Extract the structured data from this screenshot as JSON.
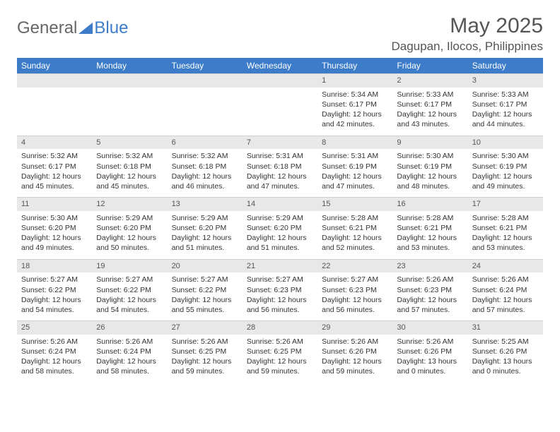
{
  "logo": {
    "text1": "General",
    "text2": "Blue"
  },
  "title": "May 2025",
  "location": "Dagupan, Ilocos, Philippines",
  "header_bg": "#3d7cc9",
  "daynum_bg": "#e8e8e8",
  "text_color": "#333333",
  "weekdays": [
    "Sunday",
    "Monday",
    "Tuesday",
    "Wednesday",
    "Thursday",
    "Friday",
    "Saturday"
  ],
  "weeks": [
    [
      null,
      null,
      null,
      null,
      {
        "n": "1",
        "sr": "5:34 AM",
        "ss": "6:17 PM",
        "dl": "12 hours and 42 minutes."
      },
      {
        "n": "2",
        "sr": "5:33 AM",
        "ss": "6:17 PM",
        "dl": "12 hours and 43 minutes."
      },
      {
        "n": "3",
        "sr": "5:33 AM",
        "ss": "6:17 PM",
        "dl": "12 hours and 44 minutes."
      }
    ],
    [
      {
        "n": "4",
        "sr": "5:32 AM",
        "ss": "6:17 PM",
        "dl": "12 hours and 45 minutes."
      },
      {
        "n": "5",
        "sr": "5:32 AM",
        "ss": "6:18 PM",
        "dl": "12 hours and 45 minutes."
      },
      {
        "n": "6",
        "sr": "5:32 AM",
        "ss": "6:18 PM",
        "dl": "12 hours and 46 minutes."
      },
      {
        "n": "7",
        "sr": "5:31 AM",
        "ss": "6:18 PM",
        "dl": "12 hours and 47 minutes."
      },
      {
        "n": "8",
        "sr": "5:31 AM",
        "ss": "6:19 PM",
        "dl": "12 hours and 47 minutes."
      },
      {
        "n": "9",
        "sr": "5:30 AM",
        "ss": "6:19 PM",
        "dl": "12 hours and 48 minutes."
      },
      {
        "n": "10",
        "sr": "5:30 AM",
        "ss": "6:19 PM",
        "dl": "12 hours and 49 minutes."
      }
    ],
    [
      {
        "n": "11",
        "sr": "5:30 AM",
        "ss": "6:20 PM",
        "dl": "12 hours and 49 minutes."
      },
      {
        "n": "12",
        "sr": "5:29 AM",
        "ss": "6:20 PM",
        "dl": "12 hours and 50 minutes."
      },
      {
        "n": "13",
        "sr": "5:29 AM",
        "ss": "6:20 PM",
        "dl": "12 hours and 51 minutes."
      },
      {
        "n": "14",
        "sr": "5:29 AM",
        "ss": "6:20 PM",
        "dl": "12 hours and 51 minutes."
      },
      {
        "n": "15",
        "sr": "5:28 AM",
        "ss": "6:21 PM",
        "dl": "12 hours and 52 minutes."
      },
      {
        "n": "16",
        "sr": "5:28 AM",
        "ss": "6:21 PM",
        "dl": "12 hours and 53 minutes."
      },
      {
        "n": "17",
        "sr": "5:28 AM",
        "ss": "6:21 PM",
        "dl": "12 hours and 53 minutes."
      }
    ],
    [
      {
        "n": "18",
        "sr": "5:27 AM",
        "ss": "6:22 PM",
        "dl": "12 hours and 54 minutes."
      },
      {
        "n": "19",
        "sr": "5:27 AM",
        "ss": "6:22 PM",
        "dl": "12 hours and 54 minutes."
      },
      {
        "n": "20",
        "sr": "5:27 AM",
        "ss": "6:22 PM",
        "dl": "12 hours and 55 minutes."
      },
      {
        "n": "21",
        "sr": "5:27 AM",
        "ss": "6:23 PM",
        "dl": "12 hours and 56 minutes."
      },
      {
        "n": "22",
        "sr": "5:27 AM",
        "ss": "6:23 PM",
        "dl": "12 hours and 56 minutes."
      },
      {
        "n": "23",
        "sr": "5:26 AM",
        "ss": "6:23 PM",
        "dl": "12 hours and 57 minutes."
      },
      {
        "n": "24",
        "sr": "5:26 AM",
        "ss": "6:24 PM",
        "dl": "12 hours and 57 minutes."
      }
    ],
    [
      {
        "n": "25",
        "sr": "5:26 AM",
        "ss": "6:24 PM",
        "dl": "12 hours and 58 minutes."
      },
      {
        "n": "26",
        "sr": "5:26 AM",
        "ss": "6:24 PM",
        "dl": "12 hours and 58 minutes."
      },
      {
        "n": "27",
        "sr": "5:26 AM",
        "ss": "6:25 PM",
        "dl": "12 hours and 59 minutes."
      },
      {
        "n": "28",
        "sr": "5:26 AM",
        "ss": "6:25 PM",
        "dl": "12 hours and 59 minutes."
      },
      {
        "n": "29",
        "sr": "5:26 AM",
        "ss": "6:26 PM",
        "dl": "12 hours and 59 minutes."
      },
      {
        "n": "30",
        "sr": "5:26 AM",
        "ss": "6:26 PM",
        "dl": "13 hours and 0 minutes."
      },
      {
        "n": "31",
        "sr": "5:25 AM",
        "ss": "6:26 PM",
        "dl": "13 hours and 0 minutes."
      }
    ]
  ],
  "labels": {
    "sunrise": "Sunrise:",
    "sunset": "Sunset:",
    "daylight": "Daylight:"
  }
}
